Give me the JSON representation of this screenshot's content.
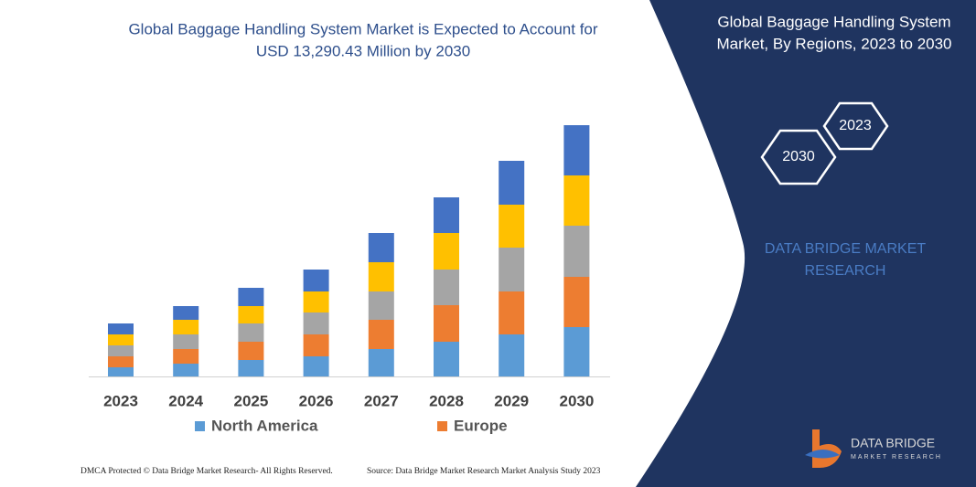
{
  "chart_data": {
    "type": "stacked-bar",
    "title": "Global Baggage Handling System Market is Expected to Account for",
    "subtitle": "USD 13,290.43 Million by 2030",
    "categories": [
      "2023",
      "2024",
      "2025",
      "2026",
      "2027",
      "2028",
      "2029",
      "2030"
    ],
    "series": [
      {
        "name": "North America",
        "color": "#5b9bd5",
        "values": [
          10,
          14,
          18,
          22,
          30,
          38,
          46,
          54
        ]
      },
      {
        "name": "Europe",
        "color": "#ed7d31",
        "values": [
          12,
          16,
          20,
          24,
          32,
          40,
          47,
          55
        ]
      },
      {
        "color": "#a5a5a5",
        "values": [
          12,
          16,
          20,
          24,
          31,
          39,
          48,
          56
        ]
      },
      {
        "color": "#ffc000",
        "values": [
          12,
          16,
          19,
          23,
          32,
          40,
          47,
          55
        ]
      },
      {
        "color": "#4472c4",
        "values": [
          12,
          15,
          20,
          24,
          32,
          39,
          48,
          55
        ]
      }
    ]
  },
  "panel": {
    "title_line1": "Global Baggage Handling System",
    "title_line2": "Market, By Regions, 2023 to 2030",
    "hex_top": "2023",
    "hex_bottom": "2030",
    "brand_line1": "DATA BRIDGE MARKET",
    "brand_line2": "RESEARCH",
    "logo_line1": "DATA BRIDGE",
    "logo_line2": "MARKET RESEARCH"
  },
  "footer": {
    "left": "DMCA Protected © Data Bridge Market Research-  All Rights Reserved.",
    "right": "Source: Data Bridge Market Research  Market Analysis Study 2023"
  }
}
